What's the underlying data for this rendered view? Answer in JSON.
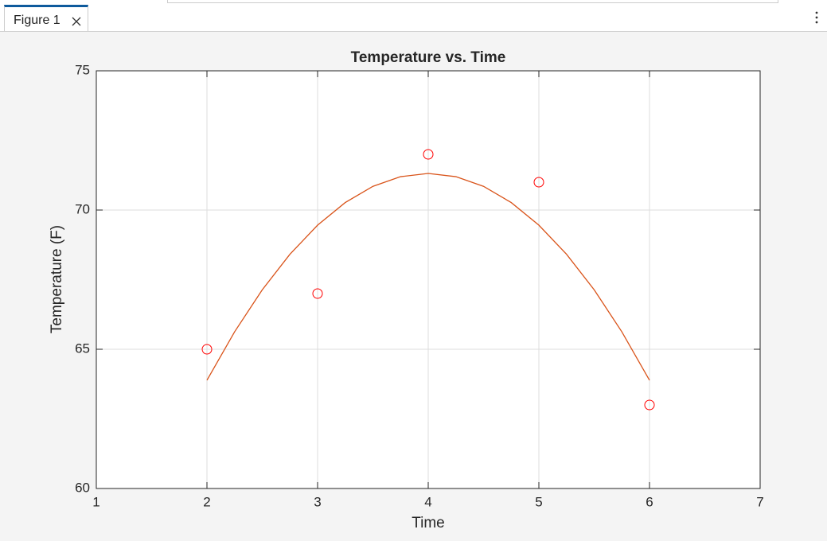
{
  "window": {
    "tab": "Figure 1"
  },
  "chart_data": {
    "type": "scatter",
    "title": "Temperature vs. Time",
    "x_label": "Time",
    "y_label": "Temperature (F)",
    "xlim": [
      1,
      7
    ],
    "xticks": [
      1,
      2,
      3,
      4,
      5,
      6,
      7
    ],
    "ylim": [
      60,
      75
    ],
    "yticks": [
      60,
      65,
      70,
      75
    ],
    "grid": true,
    "series": [
      {
        "type": "scatter",
        "color": "#ff0000",
        "x": [
          2,
          3,
          4,
          5,
          6
        ],
        "values": [
          65,
          67,
          72,
          71,
          63
        ]
      },
      {
        "type": "line",
        "color": "#d95319",
        "x": [
          2,
          2.25,
          2.5,
          2.75,
          3,
          3.25,
          3.5,
          3.75,
          4,
          4.25,
          4.5,
          4.75,
          5,
          5.25,
          5.5,
          5.75,
          6
        ],
        "values": [
          63.886,
          65.627,
          67.136,
          68.412,
          69.457,
          70.269,
          70.85,
          71.198,
          71.314,
          71.198,
          70.85,
          70.269,
          69.457,
          68.412,
          67.136,
          65.627,
          63.886
        ]
      }
    ]
  }
}
